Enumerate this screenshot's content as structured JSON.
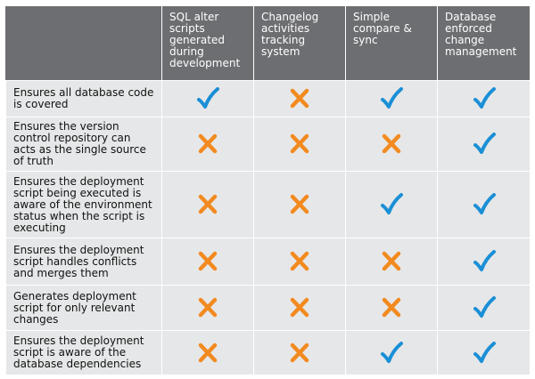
{
  "colors": {
    "header_bg": "#6d6e71",
    "cell_bg": "#e6e7e8",
    "check": "#1a8fd6",
    "cross": "#f28a1f"
  },
  "columns": [
    "SQL alter scripts generated during development",
    "Changelog activities tracking system",
    "Simple compare & sync",
    "Database enforced change management"
  ],
  "rows": [
    {
      "label": "Ensures all database code is covered",
      "marks": [
        "check-icon",
        "cross-icon",
        "check-icon",
        "check-icon"
      ]
    },
    {
      "label": "Ensures the version control repository can acts as the single source of truth",
      "marks": [
        "cross-icon",
        "cross-icon",
        "cross-icon",
        "check-icon"
      ]
    },
    {
      "label": "Ensures the deployment script being executed is aware of the environment status when the script is executing",
      "marks": [
        "cross-icon",
        "cross-icon",
        "check-icon",
        "check-icon"
      ]
    },
    {
      "label": "Ensures the deployment script handles conflicts and merges them",
      "marks": [
        "cross-icon",
        "cross-icon",
        "cross-icon",
        "check-icon"
      ]
    },
    {
      "label": "Generates deployment script for only relevant changes",
      "marks": [
        "cross-icon",
        "cross-icon",
        "cross-icon",
        "check-icon"
      ]
    },
    {
      "label": "Ensures the deployment script is aware of the database dependencies",
      "marks": [
        "cross-icon",
        "cross-icon",
        "check-icon",
        "check-icon"
      ]
    }
  ]
}
